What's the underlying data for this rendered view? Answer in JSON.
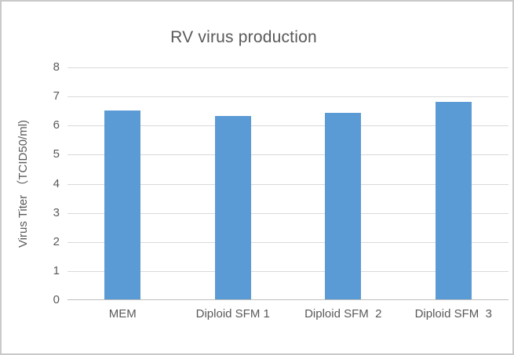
{
  "chart_data": {
    "type": "bar",
    "title": "RV virus production",
    "xlabel": "",
    "ylabel": "Virus Titer （TCID50/ml)",
    "categories": [
      "MEM",
      "Diploid SFM 1",
      "Diploid SFM  2",
      "Diploid SFM  3"
    ],
    "values": [
      6.5,
      6.3,
      6.4,
      6.8
    ],
    "ylim": [
      0,
      8
    ],
    "yticks": [
      0,
      1,
      2,
      3,
      4,
      5,
      6,
      7,
      8
    ],
    "grid": true,
    "legend": false
  },
  "colors": {
    "bar": "#5B9BD5",
    "gridline": "#D9D9D9",
    "axis_line": "#BFBFBF",
    "text": "#595959",
    "frame_border": "#C9C9C9",
    "background": "#FFFFFF"
  }
}
